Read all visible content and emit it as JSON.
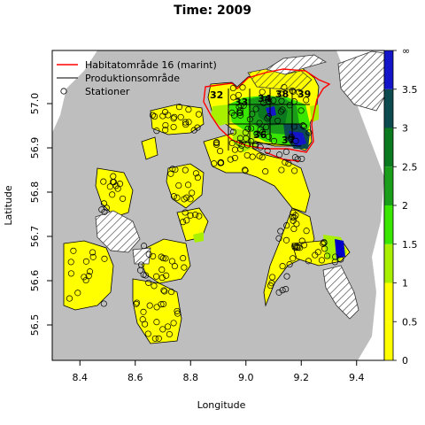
{
  "title": "Time: 2009",
  "xlabel": "Longitude",
  "ylabel": "Latitude",
  "x_ticks": [
    "8.4",
    "8.6",
    "8.8",
    "9.0",
    "9.2",
    "9.4"
  ],
  "y_ticks": [
    "56.5",
    "56.6",
    "56.7",
    "56.8",
    "56.9",
    "57.0"
  ],
  "legend": {
    "items": [
      {
        "label": "Habitatområde 16 (marint)",
        "symbol": "red-line"
      },
      {
        "label": "Produktionsområde",
        "symbol": "dark-line"
      },
      {
        "label": "Stationer",
        "symbol": "open-circle"
      }
    ]
  },
  "area_numbers": [
    "32",
    "33",
    "34",
    "38",
    "39",
    "36",
    "37"
  ],
  "colorbar": {
    "ticks": [
      "0",
      "0.5",
      "1",
      "1.5",
      "2",
      "2.5",
      "3",
      "3.5",
      "∞"
    ],
    "colors": [
      "#ffff00",
      "#ffff00",
      "#a8f000",
      "#39e600",
      "#1a9e1a",
      "#0b7a1f",
      "#0d4a4f",
      "#1414c8",
      "#0000c8"
    ]
  },
  "colors": {
    "land": "#bebebe",
    "water_low": "#ffff00",
    "habitat_line": "#ff0000",
    "production_line": "#333333"
  },
  "chart_data": {
    "type": "map",
    "title": "Time: 2009",
    "xlabel": "Longitude",
    "ylabel": "Latitude",
    "xlim": [
      8.3,
      9.5
    ],
    "ylim": [
      56.42,
      57.12
    ],
    "colorbar_range": [
      0,
      "∞"
    ]
  }
}
